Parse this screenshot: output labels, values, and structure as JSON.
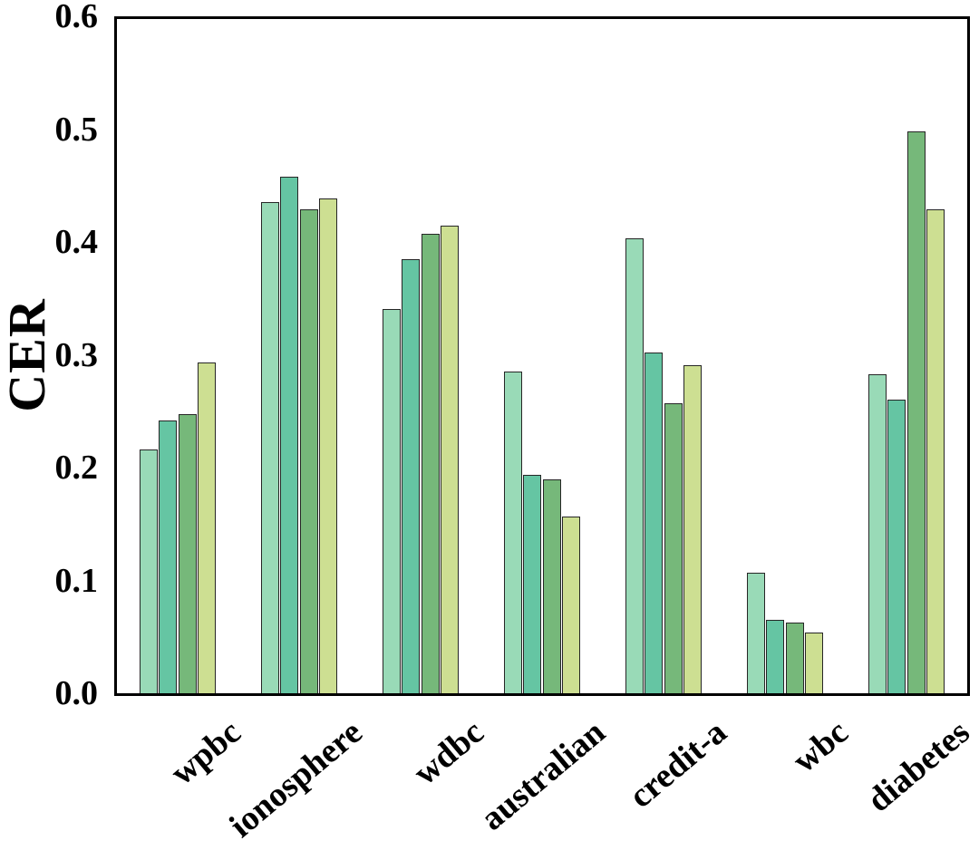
{
  "chart_data": {
    "type": "bar",
    "title": "",
    "xlabel": "",
    "ylabel": "CER",
    "ylim": [
      0,
      0.6
    ],
    "ytick_labels": [
      "0.0",
      "0.1",
      "0.2",
      "0.3",
      "0.4",
      "0.5",
      "0.6"
    ],
    "categories": [
      "wpbc",
      "ionosphere",
      "wdbc",
      "australian",
      "credit-a",
      "wbc",
      "diabetes"
    ],
    "series": [
      {
        "name": "series-1",
        "color": "#99dab7",
        "values": [
          0.217,
          0.437,
          0.342,
          0.286,
          0.405,
          0.107,
          0.284
        ]
      },
      {
        "name": "series-2",
        "color": "#65c5a3",
        "values": [
          0.243,
          0.46,
          0.386,
          0.194,
          0.303,
          0.065,
          0.261
        ]
      },
      {
        "name": "series-3",
        "color": "#76b87a",
        "values": [
          0.248,
          0.431,
          0.409,
          0.19,
          0.258,
          0.063,
          0.5
        ]
      },
      {
        "name": "series-4",
        "color": "#cddf92",
        "values": [
          0.294,
          0.44,
          0.416,
          0.157,
          0.292,
          0.054,
          0.431
        ]
      }
    ],
    "grid": false,
    "legend": false,
    "axis_color": "#000000",
    "bar_edge_color": "#262626"
  }
}
